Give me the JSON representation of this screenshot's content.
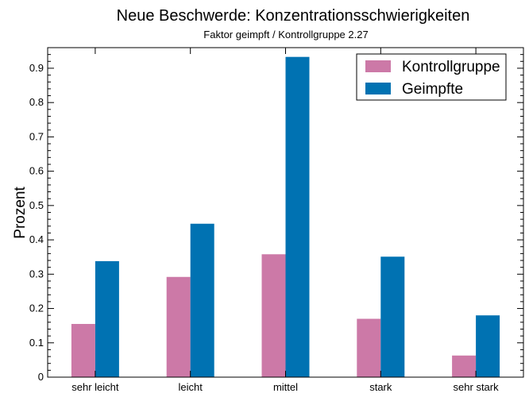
{
  "chart_data": {
    "type": "bar",
    "title": "Neue Beschwerde: Konzentrationsschwierigkeiten",
    "subtitle": "Faktor geimpft / Kontrollgruppe 2.27",
    "xlabel": "",
    "ylabel": "Prozent",
    "ylim": [
      0,
      0.96
    ],
    "yticks": [
      0,
      0.1,
      0.2,
      0.3,
      0.4,
      0.5,
      0.6,
      0.7,
      0.8,
      0.9
    ],
    "ytick_labels": [
      "0",
      "0.1",
      "0.2",
      "0.3",
      "0.4",
      "0.5",
      "0.6",
      "0.7",
      "0.8",
      "0.9"
    ],
    "categories": [
      "sehr leicht",
      "leicht",
      "mittel",
      "stark",
      "sehr stark"
    ],
    "series": [
      {
        "name": "Kontrollgruppe",
        "color": "#cc79a7",
        "values": [
          0.155,
          0.292,
          0.358,
          0.17,
          0.063
        ]
      },
      {
        "name": "Geimpfte",
        "color": "#0072b2",
        "values": [
          0.338,
          0.447,
          0.933,
          0.351,
          0.18
        ]
      }
    ],
    "legend_position": "top-right",
    "grid": false
  }
}
